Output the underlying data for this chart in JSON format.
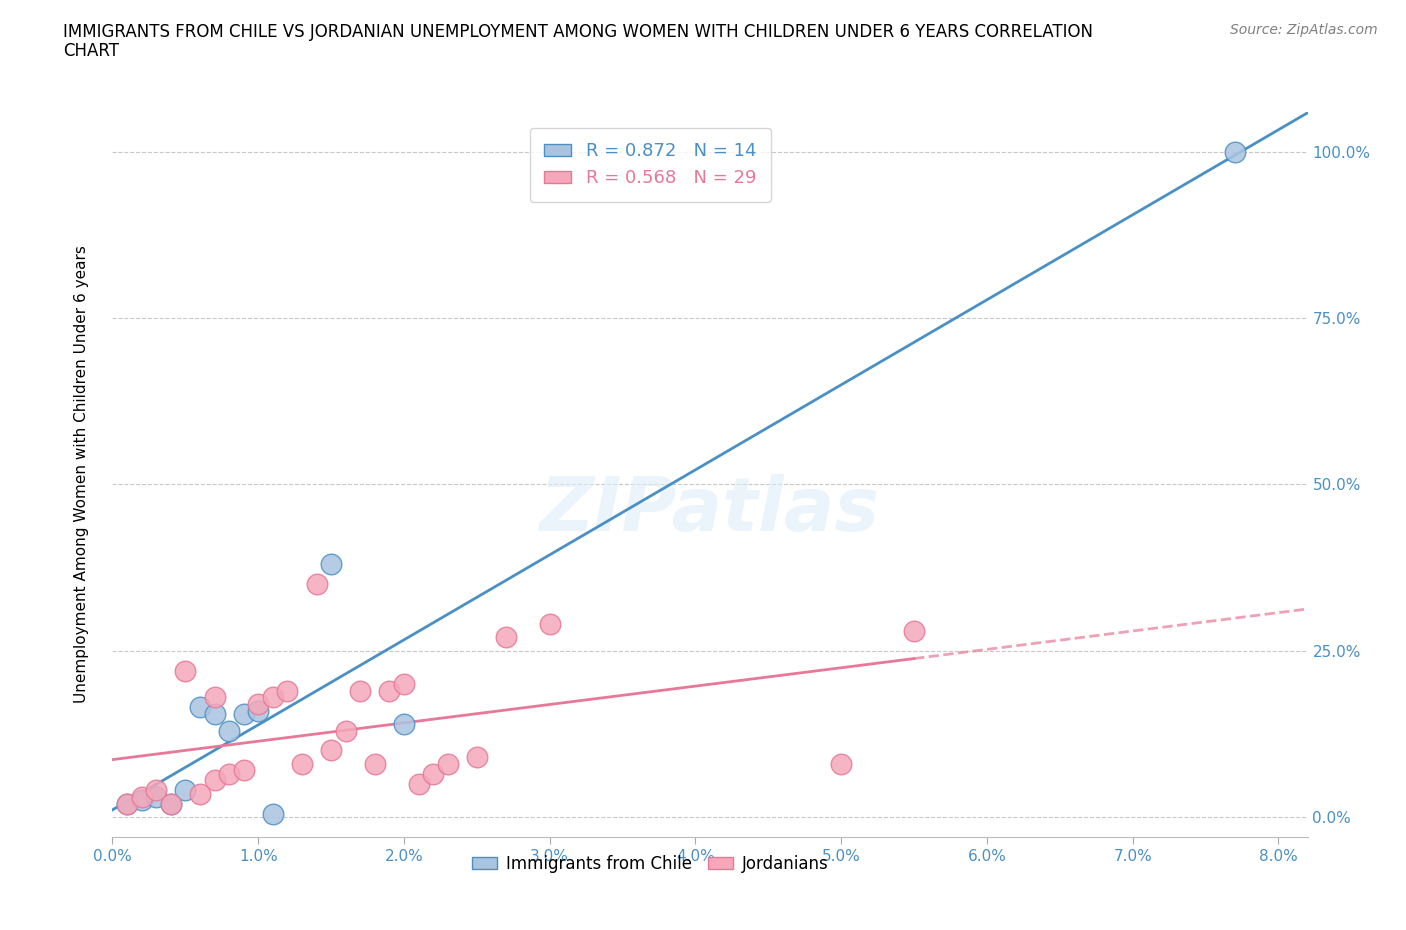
{
  "title": "IMMIGRANTS FROM CHILE VS JORDANIAN UNEMPLOYMENT AMONG WOMEN WITH CHILDREN UNDER 6 YEARS CORRELATION\nCHART",
  "source": "Source: ZipAtlas.com",
  "xlim": [
    0.0,
    0.082
  ],
  "ylim": [
    -0.03,
    1.06
  ],
  "ylabel": "Unemployment Among Women with Children Under 6 years",
  "legend_label1": "Immigrants from Chile",
  "legend_label2": "Jordanians",
  "R1": 0.872,
  "N1": 14,
  "R2": 0.568,
  "N2": 29,
  "color_blue": "#aac4e0",
  "color_pink": "#f4a8ba",
  "line_blue": "#4a90c4",
  "line_pink": "#e87898",
  "chile_x": [
    0.001,
    0.002,
    0.003,
    0.004,
    0.005,
    0.006,
    0.007,
    0.008,
    0.009,
    0.01,
    0.011,
    0.015,
    0.02,
    0.077
  ],
  "chile_y": [
    0.02,
    0.025,
    0.03,
    0.02,
    0.04,
    0.165,
    0.155,
    0.13,
    0.155,
    0.16,
    0.005,
    0.38,
    0.14,
    1.0
  ],
  "jordan_x": [
    0.001,
    0.002,
    0.003,
    0.004,
    0.005,
    0.006,
    0.007,
    0.007,
    0.008,
    0.009,
    0.01,
    0.011,
    0.012,
    0.013,
    0.014,
    0.015,
    0.016,
    0.017,
    0.018,
    0.019,
    0.02,
    0.021,
    0.022,
    0.023,
    0.025,
    0.027,
    0.03,
    0.05,
    0.055
  ],
  "jordan_y": [
    0.02,
    0.03,
    0.04,
    0.02,
    0.22,
    0.035,
    0.055,
    0.18,
    0.065,
    0.07,
    0.17,
    0.18,
    0.19,
    0.08,
    0.35,
    0.1,
    0.13,
    0.19,
    0.08,
    0.19,
    0.2,
    0.05,
    0.065,
    0.08,
    0.09,
    0.27,
    0.29,
    0.08,
    0.28
  ],
  "watermark": "ZIPatlas",
  "background_color": "#ffffff",
  "grid_color": "#c8c8c8",
  "ytick_vals": [
    0.0,
    0.25,
    0.5,
    0.75,
    1.0
  ],
  "ytick_labels": [
    "0.0%",
    "25.0%",
    "50.0%",
    "75.0%",
    "100.0%"
  ],
  "xtick_vals": [
    0.0,
    0.01,
    0.02,
    0.03,
    0.04,
    0.05,
    0.06,
    0.07,
    0.08
  ],
  "xtick_labels": [
    "0.0%",
    "1.0%",
    "2.0%",
    "3.0%",
    "4.0%",
    "5.0%",
    "6.0%",
    "7.0%",
    "8.0%"
  ]
}
